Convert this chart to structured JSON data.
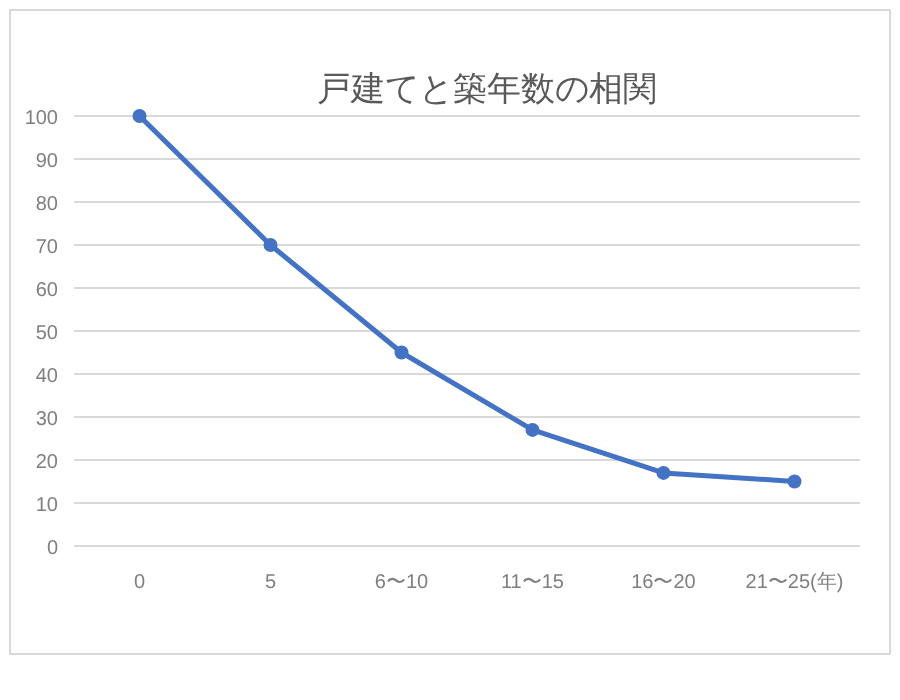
{
  "chart_data": {
    "type": "line",
    "title": "戸建てと築年数の相関",
    "categories": [
      "0",
      "5",
      "6〜10",
      "11〜15",
      "16〜20",
      "21〜25(年)"
    ],
    "series": [
      {
        "color": "#4472c4",
        "values": [
          100,
          70,
          45,
          27,
          17,
          15
        ]
      }
    ],
    "ylim": [
      0,
      100
    ],
    "yticks": [
      0,
      10,
      20,
      30,
      40,
      50,
      60,
      70,
      80,
      90,
      100
    ],
    "grid": "y",
    "marker": "circle",
    "line_style": "solid"
  }
}
